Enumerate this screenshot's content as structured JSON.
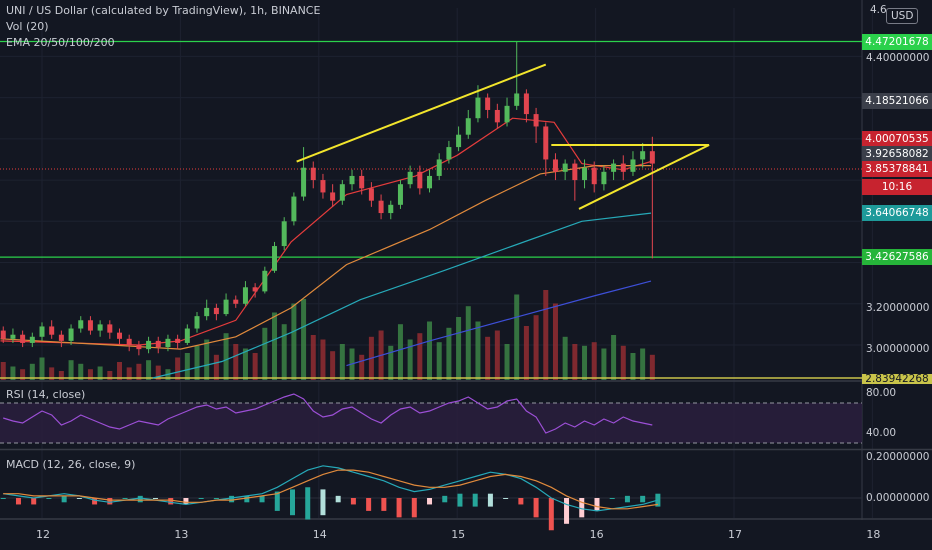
{
  "legends": {
    "title": "UNI / US Dollar (calculated by TradingView), 1h, BINANCE",
    "vol": "Vol (20)",
    "ema": "EMA 20/50/100/200",
    "rsi": "RSI (14, close)",
    "macd": "MACD (12, 26, close, 9)"
  },
  "currency": "USD",
  "price_axis": {
    "top_tick": "4.6",
    "ticks": [
      "4.40000000",
      "3.20000000",
      "3.00000000"
    ],
    "labels": [
      {
        "text": "4.47201678",
        "value": 4.47201678,
        "color": "#2bd14b"
      },
      {
        "text": "4.18521066",
        "value": 4.18521066,
        "color": "#3b3f4a"
      },
      {
        "text": "4.00070535",
        "value": 4.00070535,
        "color": "#c7232f"
      },
      {
        "text": "3.92658082",
        "value": 3.92658082,
        "color": "#3b3f4a"
      },
      {
        "text": "3.85378841",
        "value": 3.85378841,
        "color": "#c7232f"
      },
      {
        "text": "10:16",
        "value": 3.765,
        "color": "#c7232f"
      },
      {
        "text": "3.64066748",
        "value": 3.64066748,
        "color": "#1e9a9a"
      },
      {
        "text": "3.42627586",
        "value": 3.42627586,
        "color": "#26b53a"
      },
      {
        "text": "2.83942268",
        "value": 2.83942268,
        "color": "#c9c44a"
      }
    ]
  },
  "rsi_axis": [
    "80.00",
    "40.00"
  ],
  "macd_axis": [
    "0.20000000",
    "0.00000000"
  ],
  "x_axis": {
    "ticks": [
      "12",
      "13",
      "14",
      "15",
      "16",
      "17",
      "18"
    ]
  },
  "chart_data": {
    "type": "candlestick",
    "symbol": "UNIUSD",
    "interval": "1h",
    "x_days": [
      12,
      13,
      14,
      15,
      16,
      17,
      18
    ],
    "price_range": [
      2.84,
      4.62
    ],
    "horizontal_levels": [
      4.47201678,
      3.42627586
    ],
    "current_close": 3.85378841,
    "trendlines": [
      {
        "from": [
          13.84,
          3.89
        ],
        "to": [
          15.64,
          4.36
        ]
      },
      {
        "from": [
          15.68,
          3.97
        ],
        "to": [
          16.82,
          3.97
        ]
      },
      {
        "from": [
          15.88,
          3.66
        ],
        "to": [
          16.82,
          3.97
        ]
      }
    ],
    "ema": [
      {
        "period": 20,
        "color": "#e53c3c",
        "values": [
          [
            11.7,
            3.02
          ],
          [
            12.2,
            3.01
          ],
          [
            12.7,
            3.0
          ],
          [
            13.0,
            3.02
          ],
          [
            13.4,
            3.12
          ],
          [
            13.8,
            3.5
          ],
          [
            14.2,
            3.73
          ],
          [
            14.7,
            3.82
          ],
          [
            15.0,
            3.92
          ],
          [
            15.4,
            4.1
          ],
          [
            15.7,
            4.08
          ],
          [
            15.9,
            3.88
          ],
          [
            16.2,
            3.85
          ],
          [
            16.4,
            3.89
          ]
        ]
      },
      {
        "period": 50,
        "color": "#e08a3c",
        "values": [
          [
            11.7,
            3.03
          ],
          [
            12.5,
            3.0
          ],
          [
            13.0,
            2.98
          ],
          [
            13.4,
            3.04
          ],
          [
            13.8,
            3.18
          ],
          [
            14.2,
            3.39
          ],
          [
            14.8,
            3.56
          ],
          [
            15.2,
            3.7
          ],
          [
            15.6,
            3.83
          ],
          [
            16.0,
            3.87
          ],
          [
            16.4,
            3.87
          ]
        ]
      },
      {
        "period": 100,
        "color": "#26a9b8",
        "values": [
          [
            12.8,
            2.84
          ],
          [
            13.3,
            2.92
          ],
          [
            13.8,
            3.06
          ],
          [
            14.3,
            3.22
          ],
          [
            14.9,
            3.36
          ],
          [
            15.4,
            3.48
          ],
          [
            15.9,
            3.6
          ],
          [
            16.4,
            3.64
          ]
        ]
      },
      {
        "period": 200,
        "color": "#3d4fd8",
        "values": [
          [
            14.2,
            2.9
          ],
          [
            14.8,
            3.02
          ],
          [
            15.4,
            3.13
          ],
          [
            16.0,
            3.24
          ],
          [
            16.4,
            3.31
          ]
        ]
      }
    ],
    "candles": [
      [
        11.72,
        3.07,
        3.03,
        3.09,
        3.01
      ],
      [
        11.79,
        3.03,
        3.05,
        3.08,
        3.01
      ],
      [
        11.86,
        3.05,
        3.01,
        3.07,
        2.99
      ],
      [
        11.93,
        3.01,
        3.04,
        3.06,
        2.99
      ],
      [
        12.0,
        3.04,
        3.09,
        3.11,
        3.02
      ],
      [
        12.07,
        3.09,
        3.05,
        3.12,
        3.03
      ],
      [
        12.14,
        3.05,
        3.02,
        3.07,
        2.99
      ],
      [
        12.21,
        3.02,
        3.08,
        3.1,
        3.0
      ],
      [
        12.28,
        3.08,
        3.12,
        3.14,
        3.06
      ],
      [
        12.35,
        3.12,
        3.07,
        3.14,
        3.05
      ],
      [
        12.42,
        3.07,
        3.1,
        3.12,
        3.04
      ],
      [
        12.49,
        3.1,
        3.06,
        3.12,
        3.03
      ],
      [
        12.56,
        3.06,
        3.03,
        3.08,
        3.0
      ],
      [
        12.63,
        3.03,
        3.0,
        3.05,
        2.97
      ],
      [
        12.7,
        3.0,
        2.98,
        3.02,
        2.95
      ],
      [
        12.77,
        2.98,
        3.02,
        3.04,
        2.96
      ],
      [
        12.84,
        3.02,
        2.99,
        3.04,
        2.96
      ],
      [
        12.91,
        2.99,
        3.03,
        3.05,
        2.97
      ],
      [
        12.98,
        3.03,
        3.01,
        3.05,
        2.98
      ],
      [
        13.05,
        3.01,
        3.08,
        3.1,
        3.0
      ],
      [
        13.12,
        3.08,
        3.14,
        3.16,
        3.06
      ],
      [
        13.19,
        3.14,
        3.18,
        3.22,
        3.12
      ],
      [
        13.26,
        3.18,
        3.15,
        3.2,
        3.12
      ],
      [
        13.33,
        3.15,
        3.22,
        3.25,
        3.14
      ],
      [
        13.4,
        3.22,
        3.2,
        3.24,
        3.18
      ],
      [
        13.47,
        3.2,
        3.28,
        3.31,
        3.19
      ],
      [
        13.54,
        3.28,
        3.26,
        3.3,
        3.23
      ],
      [
        13.61,
        3.26,
        3.36,
        3.38,
        3.25
      ],
      [
        13.68,
        3.36,
        3.48,
        3.5,
        3.35
      ],
      [
        13.75,
        3.48,
        3.6,
        3.62,
        3.46
      ],
      [
        13.82,
        3.6,
        3.72,
        3.74,
        3.58
      ],
      [
        13.89,
        3.72,
        3.86,
        3.96,
        3.7
      ],
      [
        13.96,
        3.86,
        3.8,
        3.89,
        3.76
      ],
      [
        14.03,
        3.8,
        3.74,
        3.83,
        3.71
      ],
      [
        14.1,
        3.74,
        3.7,
        3.78,
        3.67
      ],
      [
        14.17,
        3.7,
        3.78,
        3.8,
        3.68
      ],
      [
        14.24,
        3.78,
        3.82,
        3.85,
        3.75
      ],
      [
        14.31,
        3.82,
        3.76,
        3.85,
        3.73
      ],
      [
        14.38,
        3.76,
        3.7,
        3.79,
        3.67
      ],
      [
        14.45,
        3.7,
        3.64,
        3.73,
        3.61
      ],
      [
        14.52,
        3.64,
        3.68,
        3.7,
        3.61
      ],
      [
        14.59,
        3.68,
        3.78,
        3.8,
        3.66
      ],
      [
        14.66,
        3.78,
        3.84,
        3.87,
        3.76
      ],
      [
        14.73,
        3.84,
        3.76,
        3.87,
        3.73
      ],
      [
        14.8,
        3.76,
        3.82,
        3.85,
        3.74
      ],
      [
        14.87,
        3.82,
        3.9,
        3.93,
        3.8
      ],
      [
        14.94,
        3.9,
        3.96,
        3.99,
        3.88
      ],
      [
        15.01,
        3.96,
        4.02,
        4.06,
        3.94
      ],
      [
        15.08,
        4.02,
        4.1,
        4.14,
        4.0
      ],
      [
        15.15,
        4.1,
        4.2,
        4.26,
        4.08
      ],
      [
        15.22,
        4.2,
        4.14,
        4.22,
        4.1
      ],
      [
        15.29,
        4.14,
        4.08,
        4.17,
        4.05
      ],
      [
        15.36,
        4.08,
        4.16,
        4.2,
        4.06
      ],
      [
        15.43,
        4.16,
        4.22,
        4.47,
        4.14
      ],
      [
        15.5,
        4.22,
        4.12,
        4.24,
        4.08
      ],
      [
        15.57,
        4.12,
        4.06,
        4.15,
        3.98
      ],
      [
        15.64,
        4.06,
        3.9,
        4.08,
        3.82
      ],
      [
        15.71,
        3.9,
        3.84,
        3.93,
        3.8
      ],
      [
        15.78,
        3.84,
        3.88,
        3.9,
        3.8
      ],
      [
        15.85,
        3.88,
        3.8,
        3.9,
        3.7
      ],
      [
        15.92,
        3.8,
        3.86,
        3.9,
        3.76
      ],
      [
        15.99,
        3.86,
        3.78,
        3.89,
        3.74
      ],
      [
        16.06,
        3.78,
        3.84,
        3.87,
        3.75
      ],
      [
        16.13,
        3.84,
        3.88,
        3.9,
        3.8
      ],
      [
        16.2,
        3.88,
        3.84,
        3.92,
        3.8
      ],
      [
        16.27,
        3.84,
        3.9,
        3.94,
        3.82
      ],
      [
        16.34,
        3.9,
        3.94,
        3.98,
        3.86
      ],
      [
        16.41,
        3.94,
        3.88,
        4.01,
        3.42
      ]
    ],
    "volume": {
      "series_name": "Vol (20)",
      "max_value": 100,
      "values": [
        20,
        15,
        12,
        18,
        25,
        14,
        10,
        22,
        18,
        12,
        15,
        10,
        20,
        14,
        18,
        22,
        16,
        12,
        25,
        30,
        38,
        45,
        28,
        52,
        40,
        35,
        30,
        58,
        75,
        62,
        85,
        90,
        50,
        45,
        32,
        40,
        35,
        28,
        48,
        55,
        38,
        62,
        45,
        52,
        65,
        42,
        58,
        70,
        82,
        65,
        48,
        55,
        40,
        95,
        60,
        72,
        100,
        85,
        48,
        40,
        38,
        42,
        35,
        50,
        38,
        30,
        35,
        28
      ]
    },
    "rsi": {
      "levels": [
        70,
        30
      ],
      "values": [
        55,
        52,
        50,
        56,
        62,
        58,
        48,
        52,
        58,
        54,
        50,
        46,
        44,
        48,
        52,
        50,
        48,
        54,
        58,
        62,
        66,
        68,
        64,
        66,
        60,
        62,
        64,
        68,
        72,
        76,
        79,
        74,
        62,
        56,
        58,
        64,
        66,
        60,
        54,
        50,
        58,
        64,
        66,
        60,
        62,
        66,
        70,
        72,
        76,
        70,
        64,
        66,
        72,
        74,
        62,
        56,
        40,
        44,
        50,
        46,
        52,
        48,
        54,
        50,
        56,
        52,
        50,
        48
      ]
    },
    "macd": {
      "macd_color": "#26a9b8",
      "signal_color": "#e08a3c",
      "macd": [
        0.02,
        0.01,
        0.0,
        0.01,
        0.02,
        0.01,
        -0.01,
        -0.02,
        -0.01,
        0.0,
        -0.01,
        -0.02,
        -0.03,
        -0.02,
        -0.01,
        0.0,
        0.01,
        0.02,
        0.05,
        0.09,
        0.13,
        0.15,
        0.14,
        0.12,
        0.1,
        0.08,
        0.05,
        0.03,
        0.04,
        0.06,
        0.08,
        0.1,
        0.12,
        0.11,
        0.09,
        0.05,
        0.0,
        -0.03,
        -0.05,
        -0.06,
        -0.05,
        -0.04,
        -0.03,
        -0.01
      ],
      "signal": [
        0.02,
        0.02,
        0.01,
        0.01,
        0.01,
        0.01,
        0.0,
        -0.01,
        -0.01,
        -0.01,
        -0.01,
        -0.01,
        -0.02,
        -0.02,
        -0.01,
        -0.01,
        0.0,
        0.01,
        0.02,
        0.05,
        0.08,
        0.11,
        0.13,
        0.13,
        0.12,
        0.1,
        0.08,
        0.06,
        0.05,
        0.05,
        0.06,
        0.08,
        0.1,
        0.11,
        0.1,
        0.08,
        0.05,
        0.01,
        -0.02,
        -0.04,
        -0.05,
        -0.05,
        -0.04,
        -0.03
      ]
    }
  }
}
